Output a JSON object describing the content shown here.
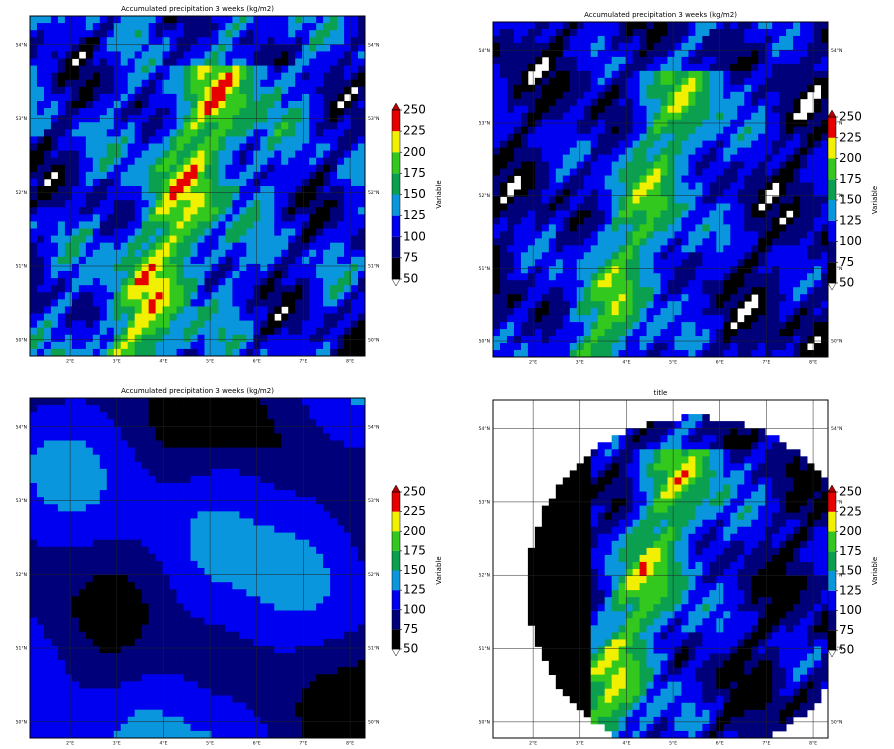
{
  "panels": [
    {
      "title": "Accumulated precipitation 3 weeks (kg/m2)",
      "style": "high",
      "lat_labels": [
        "54°N",
        "53°N",
        "52°N",
        "51°N",
        "50°N"
      ],
      "lat_values": [
        54,
        53,
        52,
        51,
        50
      ],
      "ylim": [
        49.78,
        54.39
      ],
      "lon_labels": [
        "2°E",
        "3°E",
        "4°E",
        "5°E",
        "6°E",
        "7°E",
        "8°E"
      ],
      "lon_values": [
        2,
        3,
        4,
        5,
        6,
        7,
        8
      ],
      "xlim": [
        1.14,
        8.32
      ],
      "colorbar": {
        "label": "Variable",
        "range": [
          50,
          250
        ],
        "ticks": [
          50,
          75,
          100,
          125,
          150,
          175,
          200,
          225,
          250
        ]
      }
    },
    {
      "title": "Accumulated precipitation 3 weeks (kg/m2)",
      "style": "mid",
      "lat_labels": [
        "54°N",
        "53°N",
        "52°N",
        "51°N",
        "50°N"
      ],
      "lat_values": [
        54,
        53,
        52,
        51,
        50
      ],
      "ylim": [
        49.78,
        54.39
      ],
      "lon_labels": [
        "2°E",
        "3°E",
        "4°E",
        "5°E",
        "6°E",
        "7°E",
        "8°E"
      ],
      "lon_values": [
        2,
        3,
        4,
        5,
        6,
        7,
        8
      ],
      "xlim": [
        1.14,
        8.32
      ],
      "colorbar": {
        "label": "Variable",
        "range": [
          50,
          250
        ],
        "ticks": [
          50,
          75,
          100,
          125,
          150,
          175,
          200,
          225,
          250
        ]
      }
    },
    {
      "title": "Accumulated precipitation 3 weeks (kg/m2)",
      "style": "low",
      "lat_labels": [
        "54°N",
        "53°N",
        "52°N",
        "51°N",
        "50°N"
      ],
      "lat_values": [
        54,
        53,
        52,
        51,
        50
      ],
      "ylim": [
        49.78,
        54.39
      ],
      "lon_labels": [
        "2°E",
        "3°E",
        "4°E",
        "5°E",
        "6°E",
        "7°E",
        "8°E"
      ],
      "lon_values": [
        2,
        3,
        4,
        5,
        6,
        7,
        8
      ],
      "xlim": [
        1.14,
        8.32
      ],
      "colorbar": {
        "label": "Variable",
        "range": [
          50,
          250
        ],
        "ticks": [
          50,
          75,
          100,
          125,
          150,
          175,
          200,
          225,
          250
        ]
      }
    },
    {
      "title": "title",
      "style": "radar",
      "lat_labels": [
        "54°N",
        "53°N",
        "52°N",
        "51°N",
        "50°N"
      ],
      "lat_values": [
        54,
        53,
        52,
        51,
        50
      ],
      "ylim": [
        49.78,
        54.39
      ],
      "lon_labels": [
        "2°E",
        "3°E",
        "4°E",
        "5°E",
        "6°E",
        "7°E",
        "8°E"
      ],
      "lon_values": [
        2,
        3,
        4,
        5,
        6,
        7,
        8
      ],
      "xlim": [
        1.14,
        8.32
      ],
      "colorbar": {
        "label": "Variable",
        "range": [
          50,
          250
        ],
        "ticks": [
          50,
          75,
          100,
          125,
          150,
          175,
          200,
          225,
          250
        ]
      }
    }
  ],
  "colors": [
    "#000000",
    "#00007a",
    "#0000f0",
    "#0a96dc",
    "#0aa050",
    "#32c81e",
    "#f0f000",
    "#e60000",
    "#c8c8c8"
  ]
}
